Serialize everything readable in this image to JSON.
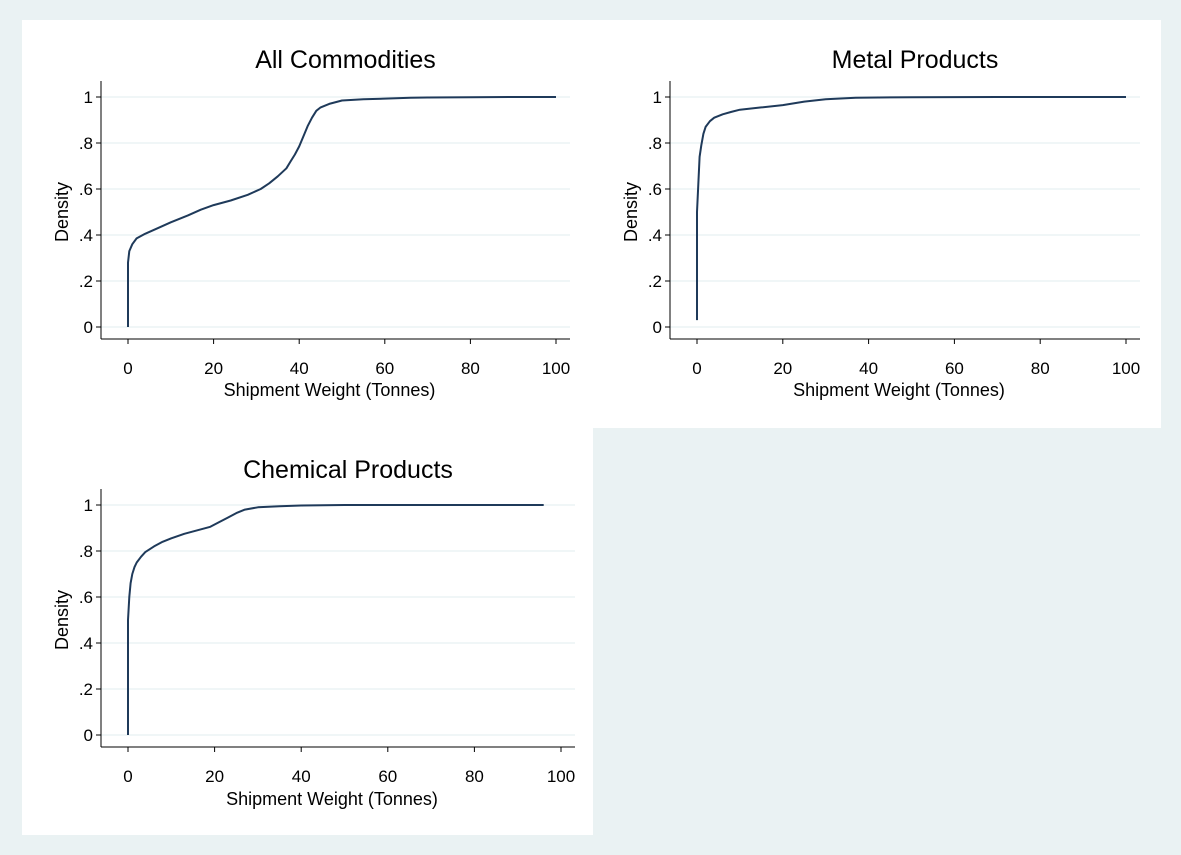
{
  "figure": {
    "background": "#eaf2f3",
    "panel_background": "#ffffff",
    "line_color": "#1f3a5a",
    "grid_color": "#e8f0f2"
  },
  "chart_data": [
    {
      "type": "line",
      "title": "All Commodities",
      "xlabel": "Shipment Weight (Tonnes)",
      "ylabel": "Density",
      "xlim": [
        0,
        100
      ],
      "ylim": [
        0,
        1
      ],
      "xticks": [
        0,
        20,
        40,
        60,
        80,
        100
      ],
      "xtick_labels": [
        "0",
        "20",
        "40",
        "60",
        "80",
        "100"
      ],
      "yticks": [
        0,
        0.2,
        0.4,
        0.6,
        0.8,
        1
      ],
      "ytick_labels": [
        "0",
        ".2",
        ".4",
        ".6",
        ".8",
        "1"
      ],
      "grid": "horizontal",
      "series": [
        {
          "x": [
            0,
            0,
            0.3,
            1,
            2,
            4,
            7,
            10,
            14,
            17,
            20,
            24,
            28,
            31,
            33,
            35,
            37,
            38,
            39,
            40,
            41,
            42,
            43,
            44,
            45,
            47,
            50,
            55,
            60,
            66,
            70,
            80,
            90,
            100
          ],
          "y": [
            0,
            0.28,
            0.33,
            0.36,
            0.385,
            0.405,
            0.43,
            0.455,
            0.485,
            0.51,
            0.53,
            0.55,
            0.575,
            0.6,
            0.625,
            0.655,
            0.69,
            0.72,
            0.75,
            0.785,
            0.83,
            0.875,
            0.91,
            0.94,
            0.955,
            0.97,
            0.985,
            0.99,
            0.993,
            0.997,
            0.998,
            0.999,
            1.0,
            1.0
          ]
        }
      ]
    },
    {
      "type": "line",
      "title": "Metal Products",
      "xlabel": "Shipment Weight (Tonnes)",
      "ylabel": "Density",
      "xlim": [
        0,
        100
      ],
      "ylim": [
        0,
        1
      ],
      "xticks": [
        0,
        20,
        40,
        60,
        80,
        100
      ],
      "xtick_labels": [
        "0",
        "20",
        "40",
        "60",
        "80",
        "100"
      ],
      "yticks": [
        0,
        0.2,
        0.4,
        0.6,
        0.8,
        1
      ],
      "ytick_labels": [
        "0",
        ".2",
        ".4",
        ".6",
        ".8",
        "1"
      ],
      "grid": "horizontal",
      "series": [
        {
          "x": [
            0,
            0,
            0.3,
            0.6,
            1,
            1.5,
            2,
            3,
            4,
            6,
            8,
            10,
            15,
            20,
            25,
            30,
            37,
            50,
            70,
            100
          ],
          "y": [
            0.03,
            0.5,
            0.62,
            0.74,
            0.79,
            0.84,
            0.87,
            0.895,
            0.91,
            0.925,
            0.935,
            0.945,
            0.955,
            0.965,
            0.98,
            0.99,
            0.997,
            0.999,
            1.0,
            1.0
          ]
        }
      ]
    },
    {
      "type": "line",
      "title": "Chemical Products",
      "xlabel": "Shipment Weight (Tonnes)",
      "ylabel": "Density",
      "xlim": [
        0,
        100
      ],
      "ylim": [
        0,
        1
      ],
      "xticks": [
        0,
        20,
        40,
        60,
        80,
        100
      ],
      "xtick_labels": [
        "0",
        "20",
        "40",
        "60",
        "80",
        "100"
      ],
      "yticks": [
        0,
        0.2,
        0.4,
        0.6,
        0.8,
        1
      ],
      "ytick_labels": [
        "0",
        ".2",
        ".4",
        ".6",
        ".8",
        "1"
      ],
      "grid": "horizontal",
      "series": [
        {
          "x": [
            0,
            0,
            0.3,
            0.6,
            1,
            1.5,
            2,
            3,
            4,
            6,
            8,
            10,
            13,
            16,
            19,
            21,
            23,
            25,
            27,
            30,
            35,
            40,
            50,
            60,
            70,
            80,
            96
          ],
          "y": [
            0,
            0.5,
            0.6,
            0.66,
            0.7,
            0.73,
            0.75,
            0.775,
            0.795,
            0.82,
            0.84,
            0.855,
            0.875,
            0.89,
            0.905,
            0.925,
            0.945,
            0.965,
            0.98,
            0.99,
            0.995,
            0.998,
            1.0,
            1.0,
            1.0,
            1.0,
            1.0
          ]
        }
      ]
    }
  ]
}
